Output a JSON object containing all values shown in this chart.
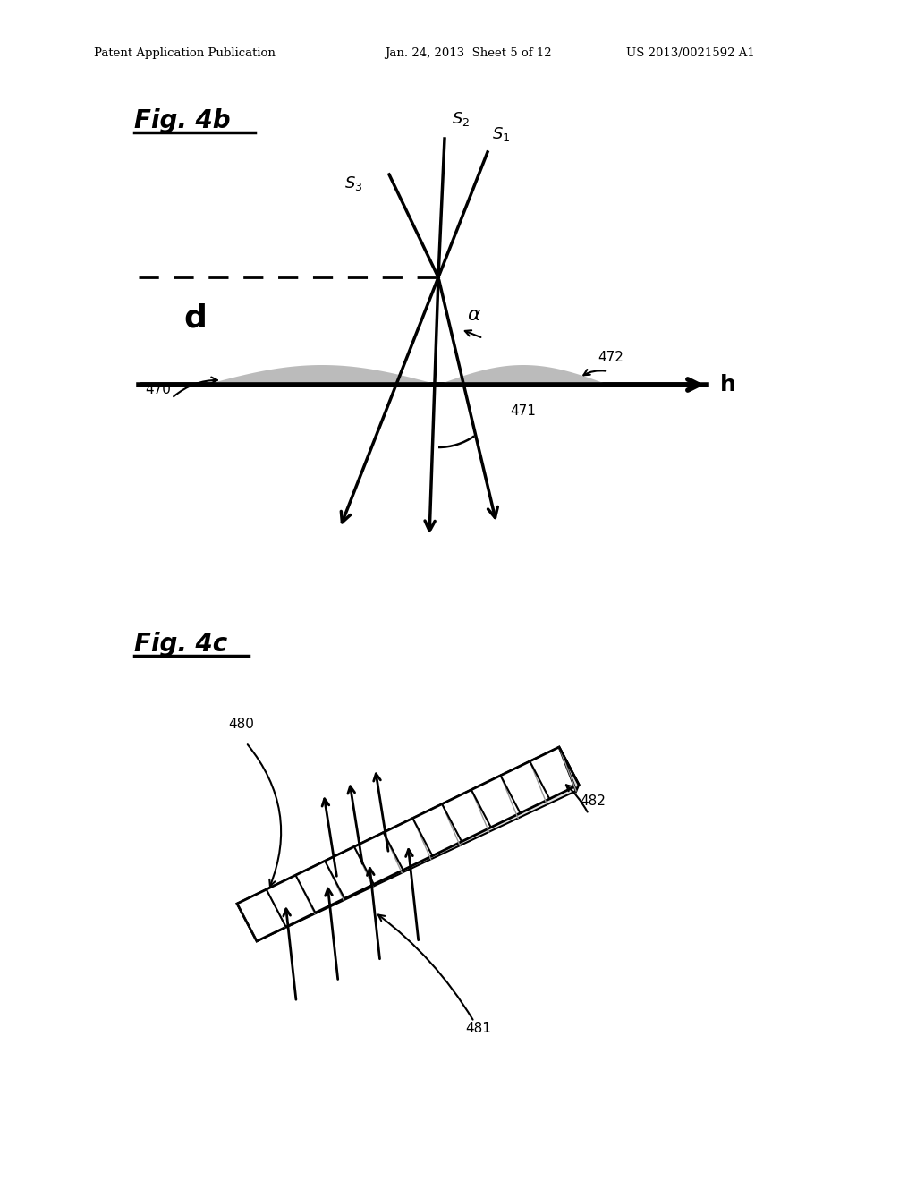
{
  "bg_color": "#ffffff",
  "header_text_left": "Patent Application Publication",
  "header_text_mid": "Jan. 24, 2013  Sheet 5 of 12",
  "header_text_right": "US 2013/0021592 A1",
  "fig4b_label": "Fig. 4b",
  "fig4c_label": "Fig. 4c",
  "text_color": "#000000",
  "gray_fill": "#b0b0b0",
  "light_gray": "#cccccc",
  "medium_gray": "#aaaaaa"
}
